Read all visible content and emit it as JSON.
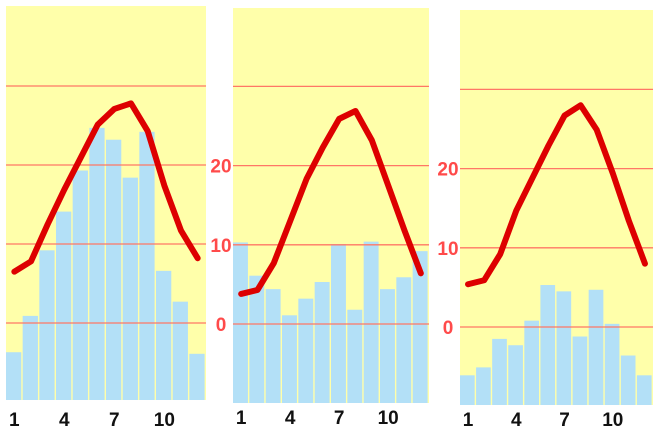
{
  "colors": {
    "background": "#ffffaa",
    "bar": "#b3e0f7",
    "line": "#dd0000",
    "gridline": "#ff7766",
    "ytick": "#ff4a4a",
    "xtick": "#111111"
  },
  "chart_data": [
    {
      "type": "bar+line",
      "title": "",
      "xlabel": "",
      "ylabel": "",
      "categories": [
        1,
        2,
        3,
        4,
        5,
        6,
        7,
        8,
        9,
        10,
        11,
        12
      ],
      "xticklabels": [
        "1",
        "4",
        "7",
        "10"
      ],
      "yticklabels": [],
      "grid": true,
      "bars": [
        -3.7,
        0.9,
        9.2,
        14.1,
        19.3,
        24.7,
        23.2,
        18.4,
        24.2,
        6.6,
        2.7,
        -3.9
      ],
      "line": [
        6.5,
        7.8,
        12.5,
        16.9,
        21.0,
        25.1,
        27.1,
        27.8,
        24.3,
        17.4,
        11.7,
        8.2
      ],
      "ylim": [
        -9.5,
        40
      ]
    },
    {
      "type": "bar+line",
      "title": "",
      "xlabel": "",
      "ylabel": "",
      "categories": [
        1,
        2,
        3,
        4,
        5,
        6,
        7,
        8,
        9,
        10,
        11,
        12
      ],
      "xticklabels": [
        "1",
        "4",
        "7",
        "10"
      ],
      "yticklabels": [
        "0",
        "10",
        "20"
      ],
      "grid": true,
      "bars": [
        10.3,
        6.1,
        4.4,
        1.1,
        3.2,
        5.3,
        10.1,
        1.8,
        10.4,
        4.4,
        5.9,
        9.2
      ],
      "line": [
        3.8,
        4.3,
        7.7,
        13.0,
        18.3,
        22.3,
        25.9,
        26.9,
        23.2,
        17.5,
        11.8,
        6.4
      ],
      "ylim": [
        -10,
        40
      ]
    },
    {
      "type": "bar+line",
      "title": "",
      "xlabel": "",
      "ylabel": "",
      "categories": [
        1,
        2,
        3,
        4,
        5,
        6,
        7,
        8,
        9,
        10,
        11,
        12
      ],
      "xticklabels": [
        "1",
        "4",
        "7",
        "10"
      ],
      "yticklabels": [
        "0",
        "10",
        "20"
      ],
      "grid": true,
      "bars": [
        -6.1,
        -5.1,
        -1.5,
        -2.3,
        0.8,
        5.3,
        4.5,
        -1.2,
        4.7,
        0.4,
        -3.6,
        -6.1
      ],
      "line": [
        5.4,
        5.9,
        9.2,
        14.7,
        18.8,
        22.9,
        26.7,
        28.0,
        24.9,
        19.4,
        13.4,
        8.0
      ],
      "ylim": [
        -10,
        40
      ]
    }
  ]
}
